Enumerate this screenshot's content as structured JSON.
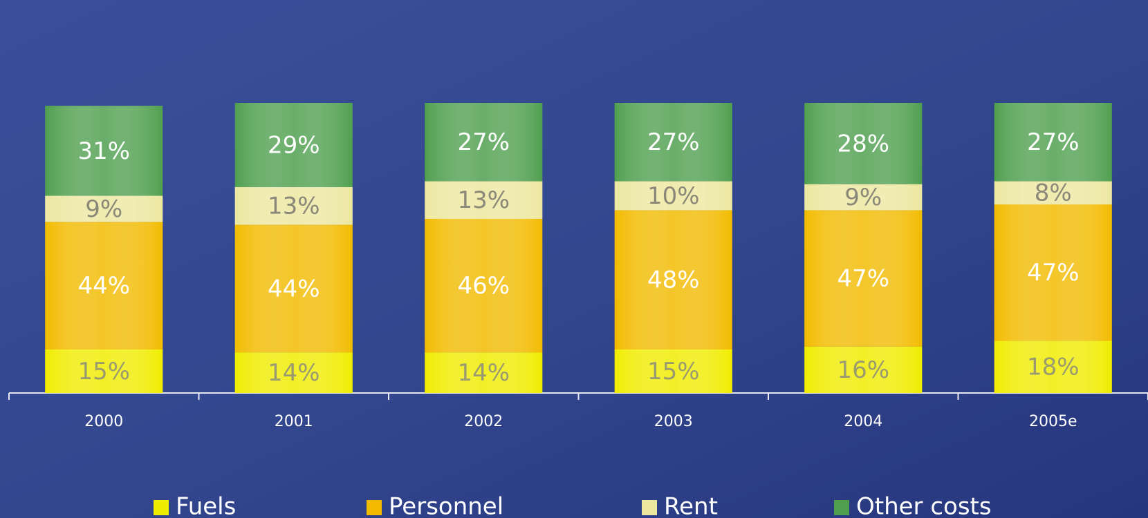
{
  "chart_data": {
    "type": "stacked-bar",
    "categories": [
      "2000",
      "2001",
      "2002",
      "2003",
      "2004",
      "2005e"
    ],
    "series": [
      {
        "name": "Fuels",
        "color": "#f0ec00",
        "values": [
          15,
          14,
          14,
          15,
          16,
          18
        ],
        "value_labels": [
          "15%",
          "14%",
          "14%",
          "15%",
          "16%",
          "18%"
        ]
      },
      {
        "name": "Personnel",
        "color": "#f2bb00",
        "values": [
          44,
          44,
          46,
          48,
          47,
          47
        ],
        "value_labels": [
          "44%",
          "44%",
          "46%",
          "48%",
          "47%",
          "47%"
        ]
      },
      {
        "name": "Rent",
        "color": "#ece7a0",
        "values": [
          9,
          13,
          13,
          10,
          9,
          8
        ],
        "value_labels": [
          "9%",
          "13%",
          "13%",
          "10%",
          "9%",
          "8%"
        ]
      },
      {
        "name": "Other costs",
        "color": "#4f9f4f",
        "values": [
          31,
          29,
          27,
          27,
          28,
          27
        ],
        "value_labels": [
          "31%",
          "29%",
          "27%",
          "27%",
          "28%",
          "27%"
        ]
      }
    ]
  }
}
